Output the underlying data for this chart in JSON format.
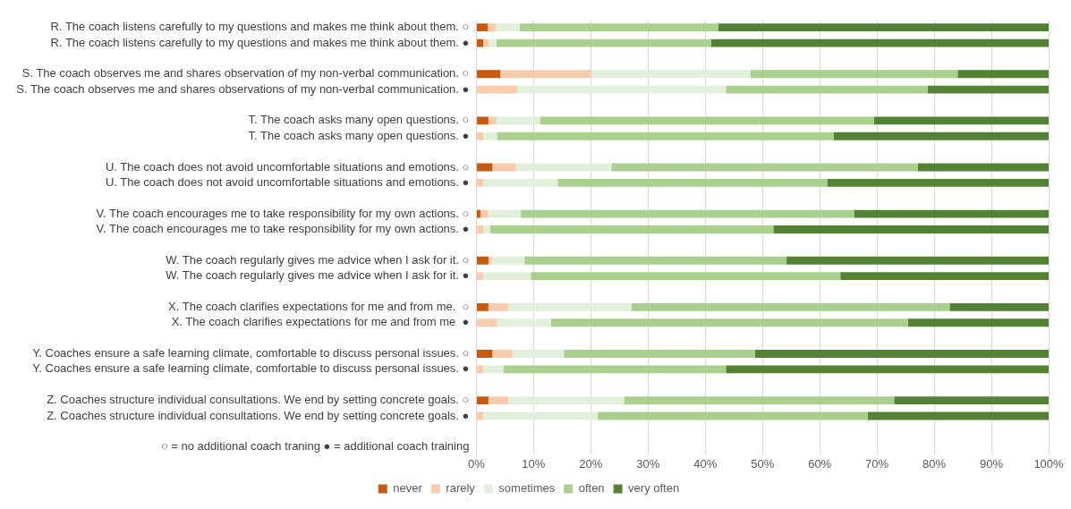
{
  "chart_data": {
    "type": "bar",
    "orientation": "horizontal",
    "stacked": true,
    "categories": [
      "R. The coach listens carefully to my questions and makes me think about them. ○",
      "R. The coach listens carefully to my questions and makes me think about them. ●",
      null,
      "S. The coach observes me and shares observation of my non-verbal communication. ○",
      "S. The coach observes me and shares observations of my non-verbal communication. ●",
      null,
      "T. The coach asks many open questions. ○",
      "T. The coach asks many open questions. ●",
      null,
      "U. The coach does not avoid uncomfortable situations and emotions. ○",
      "U. The coach does not avoid uncomfortable situations and emotions. ●",
      null,
      "V. The coach encourages me to take responsibility for my own actions. ○",
      "V. The coach encourages me to take responsibility for my own actions. ●",
      null,
      "W. The coach regularly gives me advice when I ask for it. ○",
      "W. The coach regularly gives me advice when I ask for it. ●",
      null,
      "X. The coach clarifies expectations for me and from me.  ○",
      "X. The coach clarifies expectations for me and from me  ●",
      null,
      "Y. Coaches ensure a safe learning climate, comfortable to discuss personal issues. ○",
      "Y. Coaches ensure a safe learning climate, comfortable to discuss personal issues. ●",
      null,
      "Z. Coaches structure individual consultations. We end by setting concrete goals. ○",
      "Z. Coaches structure individual consultations. We end by setting concrete goals. ●",
      null,
      "○ = no additional coach traning ● = additional coach training"
    ],
    "series": [
      {
        "name": "never",
        "color": "#c55a11",
        "values": [
          2,
          1.2,
          null,
          4.2,
          0,
          null,
          2.1,
          0,
          null,
          2.8,
          0,
          null,
          0.7,
          0,
          null,
          2.1,
          0,
          null,
          2.1,
          0,
          null,
          2.8,
          0,
          null,
          2.1,
          0,
          null,
          null
        ]
      },
      {
        "name": "rarely",
        "color": "#f8cbad",
        "values": [
          1.4,
          1,
          null,
          15.9,
          7.1,
          null,
          1.4,
          1.2,
          null,
          4.1,
          1.2,
          null,
          1.4,
          1.2,
          null,
          0.6,
          1.2,
          null,
          3.5,
          3.6,
          null,
          3.5,
          1.2,
          null,
          3.5,
          1.2,
          null,
          null
        ]
      },
      {
        "name": "sometimes",
        "color": "#e2efda",
        "values": [
          4.2,
          1.3,
          null,
          27.8,
          36.5,
          null,
          7.6,
          2.4,
          null,
          16.7,
          13,
          null,
          5.6,
          1.2,
          null,
          5.7,
          8.3,
          null,
          21.5,
          9.4,
          null,
          9,
          3.5,
          null,
          20.2,
          20,
          null,
          null
        ]
      },
      {
        "name": "often",
        "color": "#a9d08e",
        "values": [
          34.7,
          37.5,
          null,
          36.2,
          35.3,
          null,
          58.4,
          58.8,
          null,
          53.5,
          47.1,
          null,
          58.3,
          49.5,
          null,
          45.8,
          54.1,
          null,
          55.6,
          62.4,
          null,
          33.4,
          38.9,
          null,
          47.2,
          47.2,
          null,
          null
        ]
      },
      {
        "name": "very often",
        "color": "#548235",
        "values": [
          57.7,
          59,
          null,
          15.9,
          21.1,
          null,
          30.5,
          37.6,
          null,
          22.9,
          38.7,
          null,
          34,
          48.1,
          null,
          45.8,
          36.4,
          null,
          17.3,
          24.6,
          null,
          51.3,
          56.4,
          null,
          27,
          31.6,
          null,
          null
        ]
      }
    ],
    "xlim": [
      0,
      100
    ],
    "xticks": [
      {
        "value": 0,
        "label": "0%"
      },
      {
        "value": 10,
        "label": "10%"
      },
      {
        "value": 20,
        "label": "20%"
      },
      {
        "value": 30,
        "label": "30%"
      },
      {
        "value": 40,
        "label": "40%"
      },
      {
        "value": 50,
        "label": "50%"
      },
      {
        "value": 60,
        "label": "60%"
      },
      {
        "value": 70,
        "label": "70%"
      },
      {
        "value": 80,
        "label": "80%"
      },
      {
        "value": 90,
        "label": "90%"
      },
      {
        "value": 100,
        "label": "100%"
      }
    ],
    "grid": "x",
    "legend": "bottom"
  }
}
